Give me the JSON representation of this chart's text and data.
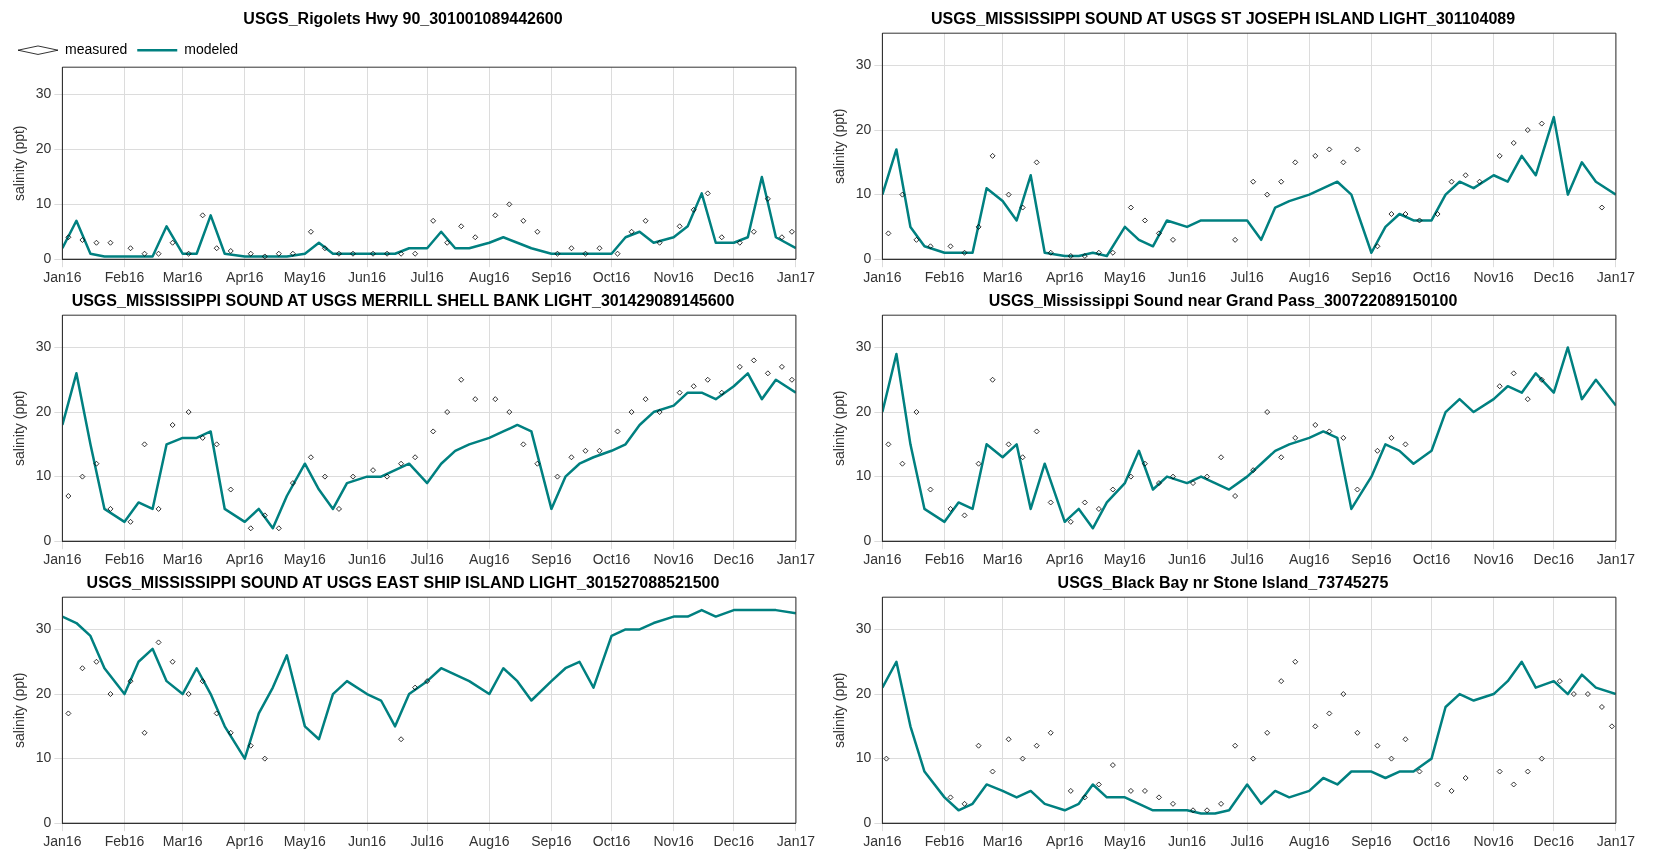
{
  "chart_data": [
    {
      "type": "line",
      "title": "USGS_Rigolets Hwy 90_301001089442600",
      "ylabel": "salinity (ppt)",
      "legend": "top left",
      "grid": true,
      "xlim": [
        "2016-01-01",
        "2017-01-01"
      ],
      "ylim": [
        0,
        35
      ],
      "yticks": [
        0,
        10,
        20,
        30
      ],
      "xticks": [
        {
          "value": "2016-01-01",
          "label": "Jan16"
        },
        {
          "value": "2016-02-01",
          "label": "Feb16"
        },
        {
          "value": "2016-03-01",
          "label": "Mar16"
        },
        {
          "value": "2016-04-01",
          "label": "Apr16"
        },
        {
          "value": "2016-05-01",
          "label": "May16"
        },
        {
          "value": "2016-06-01",
          "label": "Jun16"
        },
        {
          "value": "2016-07-01",
          "label": "Jul16"
        },
        {
          "value": "2016-08-01",
          "label": "Aug16"
        },
        {
          "value": "2016-09-01",
          "label": "Sep16"
        },
        {
          "value": "2016-10-01",
          "label": "Oct16"
        },
        {
          "value": "2016-11-01",
          "label": "Nov16"
        },
        {
          "value": "2016-12-01",
          "label": "Dec16"
        },
        {
          "value": "2017-01-01",
          "label": "Jan17"
        }
      ],
      "series": [
        {
          "name": "modeled",
          "type": "line",
          "color": "#008080",
          "x": [
            "2016-01-01",
            "2016-01-08",
            "2016-01-15",
            "2016-01-22",
            "2016-02-01",
            "2016-02-08",
            "2016-02-15",
            "2016-02-22",
            "2016-03-01",
            "2016-03-08",
            "2016-03-15",
            "2016-03-22",
            "2016-04-01",
            "2016-04-08",
            "2016-04-15",
            "2016-04-22",
            "2016-05-01",
            "2016-05-08",
            "2016-05-15",
            "2016-05-22",
            "2016-06-01",
            "2016-06-08",
            "2016-06-15",
            "2016-06-22",
            "2016-07-01",
            "2016-07-08",
            "2016-07-15",
            "2016-07-22",
            "2016-08-01",
            "2016-08-08",
            "2016-08-15",
            "2016-08-22",
            "2016-09-01",
            "2016-09-08",
            "2016-09-15",
            "2016-09-22",
            "2016-10-01",
            "2016-10-08",
            "2016-10-15",
            "2016-10-22",
            "2016-11-01",
            "2016-11-08",
            "2016-11-15",
            "2016-11-22",
            "2016-12-01",
            "2016-12-08",
            "2016-12-15",
            "2016-12-22",
            "2017-01-01"
          ],
          "values": [
            2,
            7,
            1,
            0.5,
            0.5,
            0.5,
            0.5,
            6,
            1,
            1,
            8,
            1,
            0.5,
            0.5,
            0.5,
            0.5,
            1,
            3,
            1,
            1,
            1,
            1,
            1,
            2,
            2,
            5,
            2,
            2,
            3,
            4,
            3,
            2,
            1,
            1,
            1,
            1,
            1,
            4,
            5,
            3,
            4,
            6,
            12,
            3,
            3,
            4,
            15,
            4,
            2
          ]
        },
        {
          "name": "measured",
          "type": "scatter",
          "marker": "diamond",
          "color": "#000000",
          "x": [
            "2016-01-04",
            "2016-01-11",
            "2016-01-18",
            "2016-01-25",
            "2016-02-04",
            "2016-02-11",
            "2016-02-18",
            "2016-02-25",
            "2016-03-04",
            "2016-03-11",
            "2016-03-18",
            "2016-03-25",
            "2016-04-04",
            "2016-04-11",
            "2016-04-18",
            "2016-04-25",
            "2016-05-04",
            "2016-05-11",
            "2016-05-18",
            "2016-05-25",
            "2016-06-04",
            "2016-06-11",
            "2016-06-18",
            "2016-06-25",
            "2016-07-04",
            "2016-07-11",
            "2016-07-18",
            "2016-07-25",
            "2016-08-04",
            "2016-08-11",
            "2016-08-18",
            "2016-08-25",
            "2016-09-04",
            "2016-09-11",
            "2016-09-18",
            "2016-09-25",
            "2016-10-04",
            "2016-10-11",
            "2016-10-18",
            "2016-10-25",
            "2016-11-04",
            "2016-11-11",
            "2016-11-18",
            "2016-11-25",
            "2016-12-04",
            "2016-12-11",
            "2016-12-18",
            "2016-12-25",
            "2016-12-30"
          ],
          "values": [
            4,
            3.5,
            3,
            3,
            2,
            1,
            1,
            3,
            1,
            8,
            2,
            1.5,
            1,
            0.5,
            1,
            1,
            5,
            2,
            1,
            1,
            1,
            1,
            1,
            1,
            7,
            3,
            6,
            4,
            8,
            10,
            7,
            5,
            1,
            2,
            1,
            2,
            1,
            5,
            7,
            3,
            6,
            9,
            12,
            4,
            3,
            5,
            11,
            4,
            5
          ]
        }
      ]
    },
    {
      "type": "line",
      "title": "USGS_MISSISSIPPI SOUND AT USGS ST JOSEPH ISLAND LIGHT_301104089",
      "ylabel": "salinity (ppt)",
      "grid": true,
      "xlim": [
        "2016-01-01",
        "2017-01-01"
      ],
      "ylim": [
        0,
        35
      ],
      "yticks": [
        0,
        10,
        20,
        30
      ],
      "xticks": [
        {
          "value": "2016-01-01",
          "label": "Jan16"
        },
        {
          "value": "2016-02-01",
          "label": "Feb16"
        },
        {
          "value": "2016-03-01",
          "label": "Mar16"
        },
        {
          "value": "2016-04-01",
          "label": "Apr16"
        },
        {
          "value": "2016-05-01",
          "label": "May16"
        },
        {
          "value": "2016-06-01",
          "label": "Jun16"
        },
        {
          "value": "2016-07-01",
          "label": "Jul16"
        },
        {
          "value": "2016-08-01",
          "label": "Aug16"
        },
        {
          "value": "2016-09-01",
          "label": "Sep16"
        },
        {
          "value": "2016-10-01",
          "label": "Oct16"
        },
        {
          "value": "2016-11-01",
          "label": "Nov16"
        },
        {
          "value": "2016-12-01",
          "label": "Dec16"
        },
        {
          "value": "2017-01-01",
          "label": "Jan17"
        }
      ],
      "series": [
        {
          "type": "line",
          "color": "#008080",
          "x": [
            "2016-01-01",
            "2016-01-08",
            "2016-01-15",
            "2016-01-22",
            "2016-02-01",
            "2016-02-08",
            "2016-02-15",
            "2016-02-22",
            "2016-03-01",
            "2016-03-08",
            "2016-03-15",
            "2016-03-22",
            "2016-04-01",
            "2016-04-08",
            "2016-04-15",
            "2016-04-22",
            "2016-05-01",
            "2016-05-08",
            "2016-05-15",
            "2016-05-22",
            "2016-06-01",
            "2016-06-08",
            "2016-06-15",
            "2016-06-22",
            "2016-07-01",
            "2016-07-08",
            "2016-07-15",
            "2016-07-22",
            "2016-08-01",
            "2016-08-08",
            "2016-08-15",
            "2016-08-22",
            "2016-09-01",
            "2016-09-08",
            "2016-09-15",
            "2016-09-22",
            "2016-10-01",
            "2016-10-08",
            "2016-10-15",
            "2016-10-22",
            "2016-11-01",
            "2016-11-08",
            "2016-11-15",
            "2016-11-22",
            "2016-12-01",
            "2016-12-08",
            "2016-12-15",
            "2016-12-22",
            "2017-01-01"
          ],
          "values": [
            10,
            17,
            5,
            2,
            1,
            1,
            1,
            11,
            9,
            6,
            13,
            1,
            0.5,
            0.5,
            1,
            0.5,
            5,
            3,
            2,
            6,
            5,
            6,
            6,
            6,
            6,
            3,
            8,
            9,
            10,
            11,
            12,
            10,
            1,
            5,
            7,
            6,
            6,
            10,
            12,
            11,
            13,
            12,
            16,
            13,
            22,
            10,
            15,
            12,
            10
          ]
        },
        {
          "type": "scatter",
          "marker": "diamond",
          "color": "#000000",
          "x": [
            "2016-01-04",
            "2016-01-11",
            "2016-01-18",
            "2016-01-25",
            "2016-02-04",
            "2016-02-11",
            "2016-02-18",
            "2016-02-25",
            "2016-03-04",
            "2016-03-11",
            "2016-03-18",
            "2016-03-25",
            "2016-04-04",
            "2016-04-11",
            "2016-04-18",
            "2016-04-25",
            "2016-05-04",
            "2016-05-11",
            "2016-05-18",
            "2016-05-25",
            "2016-06-25",
            "2016-07-04",
            "2016-07-11",
            "2016-07-18",
            "2016-07-25",
            "2016-08-04",
            "2016-08-11",
            "2016-08-18",
            "2016-08-25",
            "2016-09-04",
            "2016-09-11",
            "2016-09-18",
            "2016-09-25",
            "2016-10-04",
            "2016-10-11",
            "2016-10-18",
            "2016-10-25",
            "2016-11-04",
            "2016-11-11",
            "2016-11-18",
            "2016-11-25",
            "2016-12-25"
          ],
          "values": [
            4,
            10,
            3,
            2,
            2,
            1,
            5,
            16,
            10,
            8,
            15,
            1,
            0.5,
            0.5,
            1,
            1,
            8,
            6,
            4,
            3,
            3,
            12,
            10,
            12,
            15,
            16,
            17,
            15,
            17,
            2,
            7,
            7,
            6,
            7,
            12,
            13,
            12,
            16,
            18,
            20,
            21,
            8
          ]
        }
      ]
    },
    {
      "type": "line",
      "title": "USGS_MISSISSIPPI SOUND AT USGS MERRILL SHELL BANK LIGHT_301429089145600",
      "ylabel": "salinity (ppt)",
      "grid": true,
      "xlim": [
        "2016-01-01",
        "2017-01-01"
      ],
      "ylim": [
        0,
        35
      ],
      "yticks": [
        0,
        10,
        20,
        30
      ],
      "xticks": [
        {
          "value": "2016-01-01",
          "label": "Jan16"
        },
        {
          "value": "2016-02-01",
          "label": "Feb16"
        },
        {
          "value": "2016-03-01",
          "label": "Mar16"
        },
        {
          "value": "2016-04-01",
          "label": "Apr16"
        },
        {
          "value": "2016-05-01",
          "label": "May16"
        },
        {
          "value": "2016-06-01",
          "label": "Jun16"
        },
        {
          "value": "2016-07-01",
          "label": "Jul16"
        },
        {
          "value": "2016-08-01",
          "label": "Aug16"
        },
        {
          "value": "2016-09-01",
          "label": "Sep16"
        },
        {
          "value": "2016-10-01",
          "label": "Oct16"
        },
        {
          "value": "2016-11-01",
          "label": "Nov16"
        },
        {
          "value": "2016-12-01",
          "label": "Dec16"
        },
        {
          "value": "2017-01-01",
          "label": "Jan17"
        }
      ],
      "series": [
        {
          "type": "line",
          "color": "#008080",
          "x": [
            "2016-01-01",
            "2016-01-08",
            "2016-01-15",
            "2016-01-22",
            "2016-02-01",
            "2016-02-08",
            "2016-02-15",
            "2016-02-22",
            "2016-03-01",
            "2016-03-08",
            "2016-03-15",
            "2016-03-22",
            "2016-04-01",
            "2016-04-08",
            "2016-04-15",
            "2016-04-22",
            "2016-05-01",
            "2016-05-08",
            "2016-05-15",
            "2016-05-22",
            "2016-06-01",
            "2016-06-08",
            "2016-06-15",
            "2016-06-22",
            "2016-07-01",
            "2016-07-08",
            "2016-07-15",
            "2016-07-22",
            "2016-08-01",
            "2016-08-08",
            "2016-08-15",
            "2016-08-22",
            "2016-09-01",
            "2016-09-08",
            "2016-09-15",
            "2016-09-22",
            "2016-10-01",
            "2016-10-08",
            "2016-10-15",
            "2016-10-22",
            "2016-11-01",
            "2016-11-08",
            "2016-11-15",
            "2016-11-22",
            "2016-12-01",
            "2016-12-08",
            "2016-12-15",
            "2016-12-22",
            "2017-01-01"
          ],
          "values": [
            18,
            26,
            15,
            5,
            3,
            6,
            5,
            15,
            16,
            16,
            17,
            5,
            3,
            5,
            2,
            7,
            12,
            8,
            5,
            9,
            10,
            10,
            11,
            12,
            9,
            12,
            14,
            15,
            16,
            17,
            18,
            17,
            5,
            10,
            12,
            13,
            14,
            15,
            18,
            20,
            21,
            23,
            23,
            22,
            24,
            26,
            22,
            25,
            23
          ]
        },
        {
          "type": "scatter",
          "marker": "diamond",
          "color": "#000000",
          "x": [
            "2016-01-04",
            "2016-01-11",
            "2016-01-18",
            "2016-01-25",
            "2016-02-04",
            "2016-02-11",
            "2016-02-18",
            "2016-02-25",
            "2016-03-04",
            "2016-03-11",
            "2016-03-18",
            "2016-03-25",
            "2016-04-04",
            "2016-04-11",
            "2016-04-18",
            "2016-04-25",
            "2016-05-04",
            "2016-05-11",
            "2016-05-18",
            "2016-05-25",
            "2016-06-04",
            "2016-06-11",
            "2016-06-18",
            "2016-06-25",
            "2016-07-04",
            "2016-07-11",
            "2016-07-18",
            "2016-07-25",
            "2016-08-04",
            "2016-08-11",
            "2016-08-18",
            "2016-08-25",
            "2016-09-04",
            "2016-09-11",
            "2016-09-18",
            "2016-09-25",
            "2016-10-04",
            "2016-10-11",
            "2016-10-18",
            "2016-10-25",
            "2016-11-04",
            "2016-11-11",
            "2016-11-18",
            "2016-11-25",
            "2016-12-04",
            "2016-12-11",
            "2016-12-18",
            "2016-12-25",
            "2016-12-30"
          ],
          "values": [
            7,
            10,
            12,
            5,
            3,
            15,
            5,
            18,
            20,
            16,
            15,
            8,
            2,
            4,
            2,
            9,
            13,
            10,
            5,
            10,
            11,
            10,
            12,
            13,
            17,
            20,
            25,
            22,
            22,
            20,
            15,
            12,
            10,
            13,
            14,
            14,
            17,
            20,
            22,
            20,
            23,
            24,
            25,
            23,
            27,
            28,
            26,
            27,
            25
          ]
        }
      ]
    },
    {
      "type": "line",
      "title": "USGS_Mississippi Sound near Grand Pass_300722089150100",
      "ylabel": "salinity (ppt)",
      "grid": true,
      "xlim": [
        "2016-01-01",
        "2017-01-01"
      ],
      "ylim": [
        0,
        35
      ],
      "yticks": [
        0,
        10,
        20,
        30
      ],
      "xticks": [
        {
          "value": "2016-01-01",
          "label": "Jan16"
        },
        {
          "value": "2016-02-01",
          "label": "Feb16"
        },
        {
          "value": "2016-03-01",
          "label": "Mar16"
        },
        {
          "value": "2016-04-01",
          "label": "Apr16"
        },
        {
          "value": "2016-05-01",
          "label": "May16"
        },
        {
          "value": "2016-06-01",
          "label": "Jun16"
        },
        {
          "value": "2016-07-01",
          "label": "Jul16"
        },
        {
          "value": "2016-08-01",
          "label": "Aug16"
        },
        {
          "value": "2016-09-01",
          "label": "Sep16"
        },
        {
          "value": "2016-10-01",
          "label": "Oct16"
        },
        {
          "value": "2016-11-01",
          "label": "Nov16"
        },
        {
          "value": "2016-12-01",
          "label": "Dec16"
        },
        {
          "value": "2017-01-01",
          "label": "Jan17"
        }
      ],
      "series": [
        {
          "type": "line",
          "color": "#008080",
          "x": [
            "2016-01-01",
            "2016-01-08",
            "2016-01-15",
            "2016-01-22",
            "2016-02-01",
            "2016-02-08",
            "2016-02-15",
            "2016-02-22",
            "2016-03-01",
            "2016-03-08",
            "2016-03-15",
            "2016-03-22",
            "2016-04-01",
            "2016-04-08",
            "2016-04-15",
            "2016-04-22",
            "2016-05-01",
            "2016-05-08",
            "2016-05-15",
            "2016-05-22",
            "2016-06-01",
            "2016-06-08",
            "2016-06-15",
            "2016-06-22",
            "2016-07-01",
            "2016-07-08",
            "2016-07-15",
            "2016-07-22",
            "2016-08-01",
            "2016-08-08",
            "2016-08-15",
            "2016-08-22",
            "2016-09-01",
            "2016-09-08",
            "2016-09-15",
            "2016-09-22",
            "2016-10-01",
            "2016-10-08",
            "2016-10-15",
            "2016-10-22",
            "2016-11-01",
            "2016-11-08",
            "2016-11-15",
            "2016-11-22",
            "2016-12-01",
            "2016-12-08",
            "2016-12-15",
            "2016-12-22",
            "2017-01-01"
          ],
          "values": [
            20,
            29,
            15,
            5,
            3,
            6,
            5,
            15,
            13,
            15,
            5,
            12,
            3,
            5,
            2,
            6,
            9,
            14,
            8,
            10,
            9,
            10,
            9,
            8,
            10,
            12,
            14,
            15,
            16,
            17,
            16,
            5,
            10,
            15,
            14,
            12,
            14,
            20,
            22,
            20,
            22,
            24,
            23,
            26,
            23,
            30,
            22,
            25,
            21
          ]
        },
        {
          "type": "scatter",
          "marker": "diamond",
          "color": "#000000",
          "x": [
            "2016-01-04",
            "2016-01-11",
            "2016-01-18",
            "2016-01-25",
            "2016-02-04",
            "2016-02-11",
            "2016-02-18",
            "2016-02-25",
            "2016-03-04",
            "2016-03-11",
            "2016-03-18",
            "2016-03-25",
            "2016-04-04",
            "2016-04-11",
            "2016-04-18",
            "2016-04-25",
            "2016-05-04",
            "2016-05-11",
            "2016-05-18",
            "2016-05-25",
            "2016-06-04",
            "2016-06-11",
            "2016-06-18",
            "2016-06-25",
            "2016-07-04",
            "2016-07-11",
            "2016-07-18",
            "2016-07-25",
            "2016-08-04",
            "2016-08-11",
            "2016-08-18",
            "2016-08-25",
            "2016-09-04",
            "2016-09-11",
            "2016-09-18",
            "2016-11-04",
            "2016-11-11",
            "2016-11-18",
            "2016-11-25"
          ],
          "values": [
            15,
            12,
            20,
            8,
            5,
            4,
            12,
            25,
            15,
            13,
            17,
            6,
            3,
            6,
            5,
            8,
            10,
            12,
            9,
            10,
            9,
            10,
            13,
            7,
            11,
            20,
            13,
            16,
            18,
            17,
            16,
            8,
            14,
            16,
            15,
            24,
            26,
            22,
            25
          ]
        }
      ]
    },
    {
      "type": "line",
      "title": "USGS_MISSISSIPPI SOUND AT USGS EAST SHIP ISLAND LIGHT_301527088521500",
      "ylabel": "salinity (ppt)",
      "grid": true,
      "xlim": [
        "2016-01-01",
        "2017-01-01"
      ],
      "ylim": [
        0,
        35
      ],
      "yticks": [
        0,
        10,
        20,
        30
      ],
      "xticks": [
        {
          "value": "2016-01-01",
          "label": "Jan16"
        },
        {
          "value": "2016-02-01",
          "label": "Feb16"
        },
        {
          "value": "2016-03-01",
          "label": "Mar16"
        },
        {
          "value": "2016-04-01",
          "label": "Apr16"
        },
        {
          "value": "2016-05-01",
          "label": "May16"
        },
        {
          "value": "2016-06-01",
          "label": "Jun16"
        },
        {
          "value": "2016-07-01",
          "label": "Jul16"
        },
        {
          "value": "2016-08-01",
          "label": "Aug16"
        },
        {
          "value": "2016-09-01",
          "label": "Sep16"
        },
        {
          "value": "2016-10-01",
          "label": "Oct16"
        },
        {
          "value": "2016-11-01",
          "label": "Nov16"
        },
        {
          "value": "2016-12-01",
          "label": "Dec16"
        },
        {
          "value": "2017-01-01",
          "label": "Jan17"
        }
      ],
      "series": [
        {
          "type": "line",
          "color": "#008080",
          "x": [
            "2016-01-01",
            "2016-01-08",
            "2016-01-15",
            "2016-01-22",
            "2016-02-01",
            "2016-02-08",
            "2016-02-15",
            "2016-02-22",
            "2016-03-01",
            "2016-03-08",
            "2016-03-15",
            "2016-03-22",
            "2016-04-01",
            "2016-04-08",
            "2016-04-15",
            "2016-04-22",
            "2016-05-01",
            "2016-05-08",
            "2016-05-15",
            "2016-05-22",
            "2016-06-01",
            "2016-06-08",
            "2016-06-15",
            "2016-06-22",
            "2016-07-01",
            "2016-07-08",
            "2016-07-15",
            "2016-07-22",
            "2016-08-01",
            "2016-08-08",
            "2016-08-15",
            "2016-08-22",
            "2016-09-01",
            "2016-09-08",
            "2016-09-15",
            "2016-09-22",
            "2016-10-01",
            "2016-10-08",
            "2016-10-15",
            "2016-10-22",
            "2016-11-01",
            "2016-11-08",
            "2016-11-15",
            "2016-11-22",
            "2016-12-01",
            "2016-12-08",
            "2016-12-15",
            "2016-12-22",
            "2017-01-01"
          ],
          "values": [
            32,
            31,
            29,
            24,
            20,
            25,
            27,
            22,
            20,
            24,
            20,
            15,
            10,
            17,
            21,
            26,
            15,
            13,
            20,
            22,
            20,
            19,
            15,
            20,
            22,
            24,
            23,
            22,
            20,
            24,
            22,
            19,
            22,
            24,
            25,
            21,
            29,
            30,
            30,
            31,
            32,
            32,
            33,
            32,
            33,
            33,
            33,
            33,
            32.5
          ]
        },
        {
          "type": "scatter",
          "marker": "diamond",
          "color": "#000000",
          "x": [
            "2016-01-04",
            "2016-01-11",
            "2016-01-18",
            "2016-01-25",
            "2016-02-04",
            "2016-02-11",
            "2016-02-18",
            "2016-02-25",
            "2016-03-04",
            "2016-03-11",
            "2016-03-18",
            "2016-03-25",
            "2016-04-04",
            "2016-04-11",
            "2016-06-18",
            "2016-06-25",
            "2016-07-01"
          ],
          "values": [
            17,
            24,
            25,
            20,
            22,
            14,
            28,
            25,
            20,
            22,
            17,
            14,
            12,
            10,
            13,
            21,
            22
          ]
        }
      ]
    },
    {
      "type": "line",
      "title": "USGS_Black Bay nr Stone Island_73745275",
      "ylabel": "salinity (ppt)",
      "grid": true,
      "xlim": [
        "2016-01-01",
        "2017-01-01"
      ],
      "ylim": [
        0,
        35
      ],
      "yticks": [
        0,
        10,
        20,
        30
      ],
      "xticks": [
        {
          "value": "2016-01-01",
          "label": "Jan16"
        },
        {
          "value": "2016-02-01",
          "label": "Feb16"
        },
        {
          "value": "2016-03-01",
          "label": "Mar16"
        },
        {
          "value": "2016-04-01",
          "label": "Apr16"
        },
        {
          "value": "2016-05-01",
          "label": "May16"
        },
        {
          "value": "2016-06-01",
          "label": "Jun16"
        },
        {
          "value": "2016-07-01",
          "label": "Jul16"
        },
        {
          "value": "2016-08-01",
          "label": "Aug16"
        },
        {
          "value": "2016-09-01",
          "label": "Sep16"
        },
        {
          "value": "2016-10-01",
          "label": "Oct16"
        },
        {
          "value": "2016-11-01",
          "label": "Nov16"
        },
        {
          "value": "2016-12-01",
          "label": "Dec16"
        },
        {
          "value": "2017-01-01",
          "label": "Jan17"
        }
      ],
      "series": [
        {
          "type": "line",
          "color": "#008080",
          "x": [
            "2016-01-01",
            "2016-01-08",
            "2016-01-15",
            "2016-01-22",
            "2016-02-01",
            "2016-02-08",
            "2016-02-15",
            "2016-02-22",
            "2016-03-01",
            "2016-03-08",
            "2016-03-15",
            "2016-03-22",
            "2016-04-01",
            "2016-04-08",
            "2016-04-15",
            "2016-04-22",
            "2016-05-01",
            "2016-05-08",
            "2016-05-15",
            "2016-05-22",
            "2016-06-01",
            "2016-06-08",
            "2016-06-15",
            "2016-06-22",
            "2016-07-01",
            "2016-07-08",
            "2016-07-15",
            "2016-07-22",
            "2016-08-01",
            "2016-08-08",
            "2016-08-15",
            "2016-08-22",
            "2016-09-01",
            "2016-09-08",
            "2016-09-15",
            "2016-09-22",
            "2016-10-01",
            "2016-10-08",
            "2016-10-15",
            "2016-10-22",
            "2016-11-01",
            "2016-11-08",
            "2016-11-15",
            "2016-11-22",
            "2016-12-01",
            "2016-12-08",
            "2016-12-15",
            "2016-12-22",
            "2017-01-01"
          ],
          "values": [
            21,
            25,
            15,
            8,
            4,
            2,
            3,
            6,
            5,
            4,
            5,
            3,
            2,
            3,
            6,
            4,
            4,
            3,
            2,
            2,
            2,
            1.5,
            1.5,
            2,
            6,
            3,
            5,
            4,
            5,
            7,
            6,
            8,
            8,
            7,
            8,
            8,
            10,
            18,
            20,
            19,
            20,
            22,
            25,
            21,
            22,
            20,
            23,
            21,
            20
          ]
        },
        {
          "type": "scatter",
          "marker": "diamond",
          "color": "#000000",
          "x": [
            "2016-01-03",
            "2016-02-04",
            "2016-02-11",
            "2016-02-18",
            "2016-02-25",
            "2016-03-04",
            "2016-03-11",
            "2016-03-18",
            "2016-03-25",
            "2016-04-04",
            "2016-04-11",
            "2016-04-18",
            "2016-04-25",
            "2016-05-04",
            "2016-05-11",
            "2016-05-18",
            "2016-05-25",
            "2016-06-04",
            "2016-06-11",
            "2016-06-18",
            "2016-06-25",
            "2016-07-04",
            "2016-07-11",
            "2016-07-18",
            "2016-07-25",
            "2016-08-04",
            "2016-08-11",
            "2016-08-18",
            "2016-08-25",
            "2016-09-04",
            "2016-09-11",
            "2016-09-18",
            "2016-09-25",
            "2016-10-04",
            "2016-10-11",
            "2016-10-18",
            "2016-11-04",
            "2016-11-11",
            "2016-11-18",
            "2016-11-25",
            "2016-12-04",
            "2016-12-11",
            "2016-12-18",
            "2016-12-25",
            "2016-12-30"
          ],
          "values": [
            10,
            4,
            3,
            12,
            8,
            13,
            10,
            12,
            14,
            5,
            4,
            6,
            9,
            5,
            5,
            4,
            3,
            2,
            2,
            3,
            12,
            10,
            14,
            22,
            25,
            15,
            17,
            20,
            14,
            12,
            10,
            13,
            8,
            6,
            5,
            7,
            8,
            6,
            8,
            10,
            22,
            20,
            20,
            18,
            15
          ]
        }
      ]
    }
  ]
}
